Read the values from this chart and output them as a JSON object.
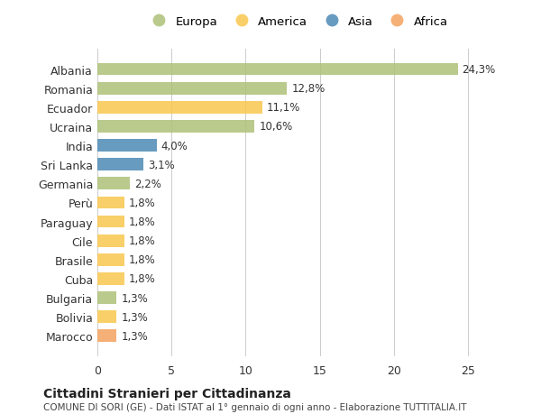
{
  "categories": [
    "Albania",
    "Romania",
    "Ecuador",
    "Ucraina",
    "India",
    "Sri Lanka",
    "Germania",
    "Perù",
    "Paraguay",
    "Cile",
    "Brasile",
    "Cuba",
    "Bulgaria",
    "Bolivia",
    "Marocco"
  ],
  "values": [
    24.3,
    12.8,
    11.1,
    10.6,
    4.0,
    3.1,
    2.2,
    1.8,
    1.8,
    1.8,
    1.8,
    1.8,
    1.3,
    1.3,
    1.3
  ],
  "labels": [
    "24,3%",
    "12,8%",
    "11,1%",
    "10,6%",
    "4,0%",
    "3,1%",
    "2,2%",
    "1,8%",
    "1,8%",
    "1,8%",
    "1,8%",
    "1,8%",
    "1,3%",
    "1,3%",
    "1,3%"
  ],
  "continents": [
    "Europa",
    "Europa",
    "America",
    "Europa",
    "Asia",
    "Asia",
    "Europa",
    "America",
    "America",
    "America",
    "America",
    "America",
    "Europa",
    "America",
    "Africa"
  ],
  "colors": {
    "Europa": "#adc178",
    "America": "#f9c74f",
    "Asia": "#4d8ab5",
    "Africa": "#f4a261"
  },
  "xlim": [
    0,
    27
  ],
  "xticks": [
    0,
    5,
    10,
    15,
    20,
    25
  ],
  "title": "Cittadini Stranieri per Cittadinanza",
  "subtitle": "COMUNE DI SORI (GE) - Dati ISTAT al 1° gennaio di ogni anno - Elaborazione TUTTITALIA.IT",
  "background_color": "#ffffff",
  "bar_alpha": 0.85,
  "label_fontsize": 8.5,
  "bar_height": 0.65,
  "legend_order": [
    "Europa",
    "America",
    "Asia",
    "Africa"
  ]
}
